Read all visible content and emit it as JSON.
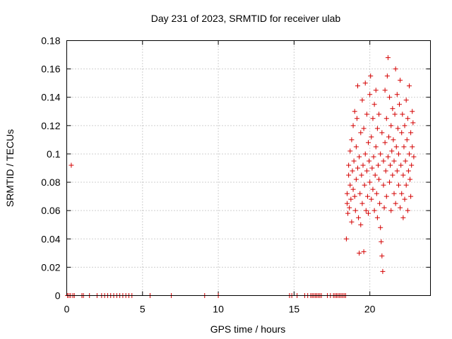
{
  "chart_data": {
    "type": "scatter",
    "title": "Day 231 of 2023, SRMTID for receiver ulab",
    "xlabel": "GPS time / hours",
    "ylabel": "SRMTID / TECUs",
    "xlim": [
      0,
      24
    ],
    "ylim": [
      0,
      0.18
    ],
    "x_ticks": [
      0,
      5,
      10,
      15,
      20
    ],
    "y_ticks": [
      0,
      0.02,
      0.04,
      0.06,
      0.08,
      0.1,
      0.12,
      0.14,
      0.16,
      0.18
    ],
    "x_tick_labels": [
      "0",
      "5",
      "10",
      "15",
      "20"
    ],
    "y_tick_labels": [
      "0",
      "0.02",
      "0.04",
      "0.06",
      "0.08",
      "0.1",
      "0.12",
      "0.14",
      "0.16",
      "0.18"
    ],
    "grid": true,
    "marker": "plus",
    "series": [
      {
        "name": "SRMTID",
        "color": "#d40000",
        "points": [
          [
            0.3,
            0.092
          ],
          [
            0.05,
            0
          ],
          [
            0.15,
            0
          ],
          [
            0.25,
            0
          ],
          [
            0.4,
            0
          ],
          [
            0.5,
            0
          ],
          [
            1.0,
            0
          ],
          [
            1.1,
            0
          ],
          [
            1.5,
            0
          ],
          [
            2.0,
            0
          ],
          [
            2.3,
            0
          ],
          [
            2.5,
            0
          ],
          [
            2.7,
            0
          ],
          [
            2.9,
            0
          ],
          [
            3.1,
            0
          ],
          [
            3.3,
            0
          ],
          [
            3.5,
            0
          ],
          [
            3.7,
            0
          ],
          [
            3.9,
            0
          ],
          [
            4.1,
            0
          ],
          [
            4.3,
            0
          ],
          [
            5.5,
            0
          ],
          [
            6.9,
            0
          ],
          [
            9.1,
            0
          ],
          [
            10.0,
            0
          ],
          [
            14.7,
            0
          ],
          [
            14.85,
            0
          ],
          [
            15.2,
            0
          ],
          [
            15.7,
            0
          ],
          [
            15.9,
            0
          ],
          [
            16.1,
            0
          ],
          [
            16.2,
            0
          ],
          [
            16.3,
            0
          ],
          [
            16.4,
            0
          ],
          [
            16.5,
            0
          ],
          [
            16.6,
            0
          ],
          [
            16.7,
            0
          ],
          [
            16.8,
            0
          ],
          [
            17.2,
            0
          ],
          [
            17.4,
            0
          ],
          [
            17.6,
            0
          ],
          [
            17.7,
            0
          ],
          [
            17.8,
            0
          ],
          [
            17.9,
            0
          ],
          [
            18.0,
            0
          ],
          [
            18.1,
            0
          ],
          [
            18.2,
            0
          ],
          [
            18.3,
            0
          ],
          [
            18.4,
            0
          ],
          [
            18.45,
            0.04
          ],
          [
            18.5,
            0.065
          ],
          [
            18.5,
            0.072
          ],
          [
            18.55,
            0.058
          ],
          [
            18.6,
            0.085
          ],
          [
            18.6,
            0.092
          ],
          [
            18.65,
            0.062
          ],
          [
            18.7,
            0.078
          ],
          [
            18.7,
            0.102
          ],
          [
            18.75,
            0.068
          ],
          [
            18.8,
            0.11
          ],
          [
            18.8,
            0.052
          ],
          [
            18.85,
            0.088
          ],
          [
            18.9,
            0.075
          ],
          [
            18.9,
            0.12
          ],
          [
            18.95,
            0.095
          ],
          [
            19.0,
            0.13
          ],
          [
            19.0,
            0.07
          ],
          [
            19.05,
            0.06
          ],
          [
            19.1,
            0.082
          ],
          [
            19.1,
            0.105
          ],
          [
            19.15,
            0.125
          ],
          [
            19.2,
            0.148
          ],
          [
            19.2,
            0.09
          ],
          [
            19.25,
            0.055
          ],
          [
            19.3,
            0.03
          ],
          [
            19.3,
            0.098
          ],
          [
            19.35,
            0.072
          ],
          [
            19.4,
            0.115
          ],
          [
            19.4,
            0.05
          ],
          [
            19.45,
            0.085
          ],
          [
            19.5,
            0.138
          ],
          [
            19.5,
            0.065
          ],
          [
            19.55,
            0.092
          ],
          [
            19.6,
            0.031
          ],
          [
            19.6,
            0.118
          ],
          [
            19.65,
            0.078
          ],
          [
            19.7,
            0.15
          ],
          [
            19.7,
            0.1
          ],
          [
            19.75,
            0.06
          ],
          [
            19.8,
            0.128
          ],
          [
            19.8,
            0.088
          ],
          [
            19.85,
            0.07
          ],
          [
            19.9,
            0.108
          ],
          [
            19.9,
            0.058
          ],
          [
            19.95,
            0.095
          ],
          [
            20.0,
            0.142
          ],
          [
            20.0,
            0.08
          ],
          [
            20.05,
            0.155
          ],
          [
            20.1,
            0.112
          ],
          [
            20.1,
            0.068
          ],
          [
            20.15,
            0.09
          ],
          [
            20.2,
            0.125
          ],
          [
            20.2,
            0.075
          ],
          [
            20.25,
            0.098
          ],
          [
            20.3,
            0.06
          ],
          [
            20.3,
            0.135
          ],
          [
            20.35,
            0.085
          ],
          [
            20.4,
            0.105
          ],
          [
            20.4,
            0.145
          ],
          [
            20.45,
            0.072
          ],
          [
            20.5,
            0.118
          ],
          [
            20.5,
            0.055
          ],
          [
            20.55,
            0.092
          ],
          [
            20.6,
            0.128
          ],
          [
            20.6,
            0.082
          ],
          [
            20.65,
            0.065
          ],
          [
            20.7,
            0.1
          ],
          [
            20.7,
            0.048
          ],
          [
            20.75,
            0.038
          ],
          [
            20.8,
            0.028
          ],
          [
            20.8,
            0.115
          ],
          [
            20.85,
            0.017
          ],
          [
            20.9,
            0.078
          ],
          [
            20.9,
            0.095
          ],
          [
            20.95,
            0.062
          ],
          [
            21.0,
            0.108
          ],
          [
            21.0,
            0.145
          ],
          [
            21.05,
            0.088
          ],
          [
            21.1,
            0.125
          ],
          [
            21.1,
            0.07
          ],
          [
            21.15,
            0.155
          ],
          [
            21.2,
            0.098
          ],
          [
            21.2,
            0.168
          ],
          [
            21.25,
            0.112
          ],
          [
            21.3,
            0.08
          ],
          [
            21.3,
            0.14
          ],
          [
            21.35,
            0.092
          ],
          [
            21.4,
            0.12
          ],
          [
            21.4,
            0.06
          ],
          [
            21.45,
            0.102
          ],
          [
            21.5,
            0.132
          ],
          [
            21.5,
            0.085
          ],
          [
            21.55,
            0.11
          ],
          [
            21.6,
            0.072
          ],
          [
            21.6,
            0.095
          ],
          [
            21.65,
            0.128
          ],
          [
            21.7,
            0.16
          ],
          [
            21.7,
            0.065
          ],
          [
            21.75,
            0.105
          ],
          [
            21.8,
            0.088
          ],
          [
            21.8,
            0.142
          ],
          [
            21.85,
            0.118
          ],
          [
            21.9,
            0.078
          ],
          [
            21.9,
            0.1
          ],
          [
            21.95,
            0.135
          ],
          [
            22.0,
            0.062
          ],
          [
            22.0,
            0.152
          ],
          [
            22.05,
            0.092
          ],
          [
            22.1,
            0.115
          ],
          [
            22.1,
            0.072
          ],
          [
            22.15,
            0.128
          ],
          [
            22.2,
            0.085
          ],
          [
            22.2,
            0.055
          ],
          [
            22.25,
            0.105
          ],
          [
            22.3,
            0.12
          ],
          [
            22.3,
            0.068
          ],
          [
            22.35,
            0.095
          ],
          [
            22.4,
            0.138
          ],
          [
            22.4,
            0.078
          ],
          [
            22.45,
            0.11
          ],
          [
            22.5,
            0.06
          ],
          [
            22.5,
            0.125
          ],
          [
            22.55,
            0.088
          ],
          [
            22.6,
            0.148
          ],
          [
            22.6,
            0.1
          ],
          [
            22.65,
            0.082
          ],
          [
            22.7,
            0.115
          ],
          [
            22.7,
            0.07
          ],
          [
            22.75,
            0.092
          ],
          [
            22.8,
            0.13
          ],
          [
            22.8,
            0.105
          ],
          [
            22.85,
            0.122
          ],
          [
            22.9,
            0.098
          ]
        ]
      }
    ]
  }
}
